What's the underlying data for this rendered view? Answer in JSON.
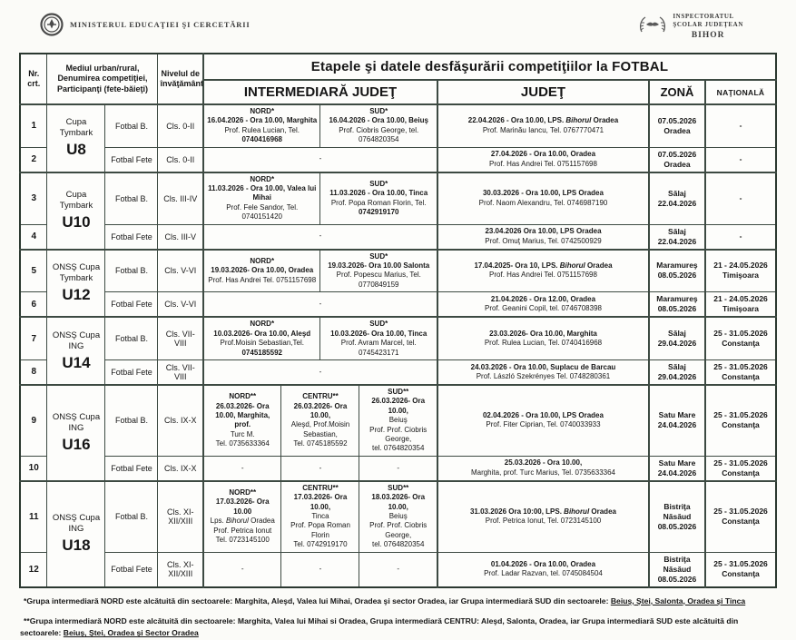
{
  "page": {
    "ministry": "MINISTERUL EDUCAŢIEI ŞI CERCETĂRII",
    "inspectorate": {
      "l1": "INSPECTORATUL",
      "l2": "ŞCOLAR JUDEŢEAN",
      "l3": "BIHOR"
    }
  },
  "table": {
    "headers": {
      "nr": "Nr. crt.",
      "mediul": "Mediul urban/rural, Denumirea competiţiei, Participanţi (fete-băieţi)",
      "nivel": "Nivelul de învăţământ",
      "title": "Etapele şi datele desfăşurării competiţiilor la FOTBAL",
      "intermediara": "INTERMEDIARĂ JUDEŢ",
      "judet": "JUDEŢ",
      "zona": "ZONĂ",
      "nationala": "NAŢIONALĂ"
    },
    "groups": [
      {
        "name": "Cupa Tymbark",
        "code": "U8",
        "rows": [
          {
            "nr": "1",
            "gender": "Fotbal B.",
            "level": "Cls. 0-II",
            "inter": [
              [
                "NORD*",
                "16.04.2026 - Ora 10.00, Marghita",
                "Prof. Rulea Lucian, Tel.",
                "0740416968"
              ],
              [
                "SUD*",
                "16.04.2026 - Ora 10.00, Beiuş",
                "Prof. Ciobris George, tel. 0764820354"
              ]
            ],
            "judet": [
              "22.04.2026 - Ora 10.00, LPS. Bihorul Oradea",
              "Prof. Marinău Iancu, Tel. 0767770471"
            ],
            "zona": [
              "07.05.2026",
              "Oradea"
            ],
            "nationala": [
              "-"
            ]
          },
          {
            "nr": "2",
            "gender": "Fotbal Fete",
            "level": "Cls. 0-II",
            "inter": [
              [
                "-"
              ]
            ],
            "judet": [
              "27.04.2026 - Ora 10.00, Oradea",
              "Prof. Has Andrei Tel. 0751157698"
            ],
            "zona": [
              "07.05.2026",
              "Oradea"
            ],
            "nationala": [
              "-"
            ]
          }
        ]
      },
      {
        "name": "Cupa Tymbark",
        "code": "U10",
        "rows": [
          {
            "nr": "3",
            "gender": "Fotbal B.",
            "level": "Cls. III-IV",
            "inter": [
              [
                "NORD*",
                "11.03.2026 - Ora 10.00, Valea lui Mihai",
                "Prof. Fele Sandor, Tel. 0740151420"
              ],
              [
                "SUD*",
                "11.03.2026 - Ora 10.00, Tinca",
                "Prof. Popa Roman Florin, Tel.",
                "0742919170"
              ]
            ],
            "judet": [
              "30.03.2026 - Ora 10.00, LPS Oradea",
              "Prof. Naom Alexandru, Tel. 0746987190"
            ],
            "zona": [
              "Sălaj",
              "22.04.2026"
            ],
            "nationala": [
              "-"
            ]
          },
          {
            "nr": "4",
            "gender": "Fotbal Fete",
            "level": "Cls. III-V",
            "inter": [
              [
                "-"
              ]
            ],
            "judet": [
              "23.04.2026 Ora 10.00, LPS Oradea",
              "Prof. Omuţ Marius, Tel. 0742500929"
            ],
            "zona": [
              "Sălaj",
              "22.04.2026"
            ],
            "nationala": [
              "-"
            ]
          }
        ]
      },
      {
        "name": "ONSŞ Cupa Tymbark",
        "code": "U12",
        "rows": [
          {
            "nr": "5",
            "gender": "Fotbal B.",
            "level": "Cls. V-VI",
            "inter": [
              [
                "NORD*",
                "19.03.2026- Ora 10.00, Oradea",
                "Prof. Has Andrei Tel. 0751157698"
              ],
              [
                "SUD*",
                "19.03.2026- Ora 10.00 Salonta",
                "Prof. Popescu Marius, Tel. 0770849159"
              ]
            ],
            "judet": [
              "17.04.2025- Ora 10, LPS. Bihorul Oradea",
              "Prof. Has Andrei Tel. 0751157698"
            ],
            "zona": [
              "Maramureş",
              "08.05.2026"
            ],
            "nationala": [
              "21 - 24.05.2026",
              "Timişoara"
            ]
          },
          {
            "nr": "6",
            "gender": "Fotbal Fete",
            "level": "Cls. V-VI",
            "inter": [
              [
                "-"
              ]
            ],
            "judet": [
              "21.04.2026 - Ora 12.00, Oradea",
              "Prof. Geanini Copil, tel. 0746708398"
            ],
            "zona": [
              "Maramureş",
              "08.05.2026"
            ],
            "nationala": [
              "21 - 24.05.2026",
              "Timişoara"
            ]
          }
        ]
      },
      {
        "name": "ONSŞ Cupa ING",
        "code": "U14",
        "rows": [
          {
            "nr": "7",
            "gender": "Fotbal B.",
            "level": "Cls. VII-VIII",
            "inter": [
              [
                "NORD*",
                "10.03.2026- Ora 10.00, Aleşd",
                "Prof.Moisin Sebastian,Tel.",
                "0745185592"
              ],
              [
                "SUD*",
                "10.03.2026- Ora 10.00, Tinca",
                "Prof. Avram Marcel, tel. 0745423171"
              ]
            ],
            "judet": [
              "23.03.2026- Ora 10.00, Marghita",
              "Prof. Rulea Lucian, Tel. 0740416968"
            ],
            "zona": [
              "Sălaj",
              "29.04.2026"
            ],
            "nationala": [
              "25 - 31.05.2026",
              "Constanţa"
            ]
          },
          {
            "nr": "8",
            "gender": "Fotbal Fete",
            "level": "Cls. VII-VIII",
            "inter": [
              [
                "-"
              ]
            ],
            "judet": [
              "24.03.2026 - Ora 10.00, Suplacu de Barcau",
              "Prof. László Szekrényes Tel. 0748280361"
            ],
            "zona": [
              "Sălaj",
              "29.04.2026"
            ],
            "nationala": [
              "25 - 31.05.2026",
              "Constanţa"
            ]
          }
        ]
      },
      {
        "name": "ONSŞ Cupa ING",
        "code": "U16",
        "rows": [
          {
            "nr": "9",
            "gender": "Fotbal B.",
            "level": "Cls. IX-X",
            "inter": [
              [
                "NORD**",
                "26.03.2026- Ora",
                "10.00, Marghita, prof.",
                "Turc M.",
                "Tel. 0735633364"
              ],
              [
                "CENTRU**",
                "26.03.2026- Ora 10.00,",
                "Aleşd, Prof.Moisin",
                "Sebastian,",
                "Tel. 0745185592"
              ],
              [
                "SUD**",
                "26.03.2026- Ora 10.00,",
                "Beiuş",
                "Prof. Prof. Ciobris George,",
                "tel. 0764820354"
              ]
            ],
            "judet": [
              "02.04.2026 - Ora 10.00, LPS Oradea",
              "Prof. Fiter Ciprian, Tel. 0740033933"
            ],
            "zona": [
              "Satu Mare",
              "24.04.2026"
            ],
            "nationala": [
              "25 - 31.05.2026",
              "Constanţa"
            ]
          },
          {
            "nr": "10",
            "gender": "Fotbal Fete",
            "level": "Cls. IX-X",
            "inter": [
              [
                "-"
              ],
              [
                "-"
              ],
              [
                "-"
              ]
            ],
            "judet": [
              "25.03.2026 - Ora 10.00,",
              "Marghita, prof. Turc Marius, Tel. 0735633364"
            ],
            "zona": [
              "Satu Mare",
              "24.04.2026"
            ],
            "nationala": [
              "25 - 31.05.2026",
              "Constanţa"
            ]
          }
        ]
      },
      {
        "name": "ONSŞ Cupa ING",
        "code": "U18",
        "rows": [
          {
            "nr": "11",
            "gender": "Fotbal B.",
            "level": "Cls. XI-XII/XIII",
            "inter": [
              [
                "NORD**",
                "17.03.2026- Ora",
                "10.00",
                "Lps. Bihorul Oradea",
                "Prof. Petrica Ionut",
                "Tel. 0723145100"
              ],
              [
                "CENTRU**",
                "17.03.2026- Ora 10.00,",
                "Tinca",
                "Prof. Popa Roman Florin",
                "Tel. 0742919170"
              ],
              [
                "SUD**",
                "18.03.2026- Ora 10.00,",
                "Beiuş",
                "Prof. Prof. Ciobris George,",
                "tel. 0764820354"
              ]
            ],
            "judet": [
              "31.03.2026 Ora 10:00, LPS. Bihorul Oradea",
              "Prof. Petrica Ionut, Tel. 0723145100"
            ],
            "zona": [
              "Bistriţa Năsăud",
              "08.05.2026"
            ],
            "nationala": [
              "25 - 31.05.2026",
              "Constanţa"
            ]
          },
          {
            "nr": "12",
            "gender": "Fotbal Fete",
            "level": "Cls. XI-XII/XIII",
            "inter": [
              [
                "-"
              ],
              [
                "-"
              ],
              [
                "-"
              ]
            ],
            "judet": [
              "01.04.2026 - Ora 10.00, Oradea",
              "Prof. Ladar Razvan, tel. 0745084504"
            ],
            "zona": [
              "Bistriţa Năsăud",
              "08.05.2026"
            ],
            "nationala": [
              "25 - 31.05.2026",
              "Constanţa"
            ]
          }
        ]
      }
    ]
  },
  "footnotes": [
    {
      "pre": "*Grupa intermediară NORD este alcătuită din sectoarele: Marghita, Aleşd, Valea lui Mihai, Oradea şi sector Oradea, iar Grupa intermediară SUD din sectoarele: ",
      "underlined": "Beiuş, Ştei, Salonta, Oradea şi Tinca"
    },
    {
      "pre": "**Grupa intermediară NORD este alcătuită din sectoarele: Marghita, Valea lui Mihai si Oradea, Grupa intermediară CENTRU: Aleşd, Salonta, Oradea, iar Grupa intermediară SUD este alcătuită din sectoarele: ",
      "underlined": "Beiuş, Ştei, Oradea şi Sector Oradea"
    }
  ]
}
